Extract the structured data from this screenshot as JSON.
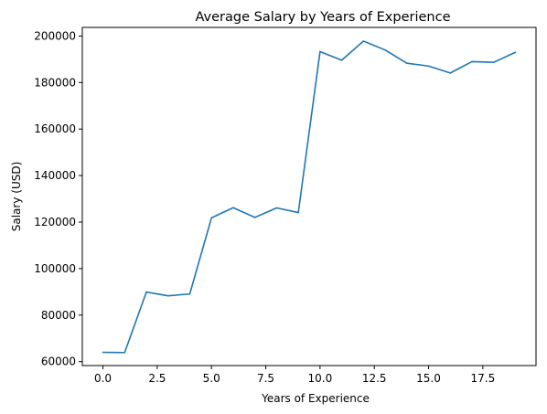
{
  "chart_data": {
    "type": "line",
    "title": "Average Salary by Years of Experience",
    "xlabel": "Years of Experience",
    "ylabel": "Salary (USD)",
    "xlim": [
      -0.95,
      19.95
    ],
    "ylim": [
      58300,
      203700
    ],
    "xticks": [
      0,
      2.5,
      5,
      7.5,
      10,
      12.5,
      15,
      17.5
    ],
    "xtick_labels": [
      "0.0",
      "2.5",
      "5.0",
      "7.5",
      "10.0",
      "12.5",
      "15.0",
      "17.5"
    ],
    "yticks": [
      60000,
      80000,
      100000,
      120000,
      140000,
      160000,
      180000,
      200000
    ],
    "ytick_labels": [
      "60000",
      "80000",
      "100000",
      "120000",
      "140000",
      "160000",
      "180000",
      "200000"
    ],
    "grid": false,
    "color": "#1f77b4",
    "series": [
      {
        "x": [
          0,
          1,
          2,
          3,
          4,
          5,
          6,
          7,
          8,
          9,
          10,
          11,
          12,
          13,
          14,
          15,
          16,
          17,
          18,
          19
        ],
        "values": [
          64000,
          63900,
          89900,
          88300,
          89100,
          121800,
          126200,
          122000,
          126100,
          124100,
          193300,
          189600,
          197800,
          194000,
          188300,
          187100,
          184100,
          189000,
          188700,
          193000
        ]
      }
    ]
  }
}
